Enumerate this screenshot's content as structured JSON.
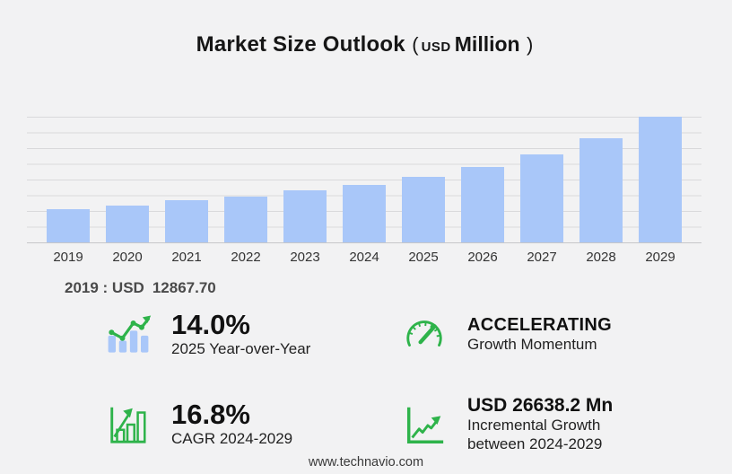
{
  "title": {
    "main": "Market Size Outlook",
    "open_paren": "(",
    "currency": "USD",
    "unit": "Million",
    "close_paren": ")"
  },
  "chart_data": {
    "type": "bar",
    "title": "Market Size Outlook (USD Million)",
    "categories": [
      "2019",
      "2020",
      "2021",
      "2022",
      "2023",
      "2024",
      "2025",
      "2026",
      "2027",
      "2028",
      "2029"
    ],
    "values": [
      12867.7,
      14600,
      16400,
      18100,
      20300,
      22694.4,
      25871.6,
      29600,
      34500,
      40900,
      49332.6
    ],
    "xlabel": "",
    "ylabel": "",
    "ylim": [
      0,
      49333
    ],
    "grid": "horizontal-only",
    "legend": false,
    "bar_color": "#a9c7f9"
  },
  "annotation": {
    "prefix": "2019 : USD",
    "value": "12867.70"
  },
  "stats": [
    {
      "icon": "bar-trend-up-icon",
      "value": "14.0%",
      "label": "2025 Year-over-Year"
    },
    {
      "icon": "gauge-icon",
      "value": "ACCELERATING",
      "label": "Growth Momentum"
    },
    {
      "icon": "bar-growth-icon",
      "value": "16.8%",
      "label": "CAGR 2024-2029"
    },
    {
      "icon": "line-growth-icon",
      "value": "USD 26638.2 Mn",
      "label": "Incremental Growth",
      "label2": "between 2024-2029"
    }
  ],
  "footer": {
    "url": "www.technavio.com"
  },
  "colors": {
    "background": "#f2f2f3",
    "bar_blue": "#a9c7f9",
    "accent_green": "#2eb34a",
    "gridline": "#d9d9db",
    "title_text": "#161616",
    "annotation_text": "#4a4a4a"
  }
}
